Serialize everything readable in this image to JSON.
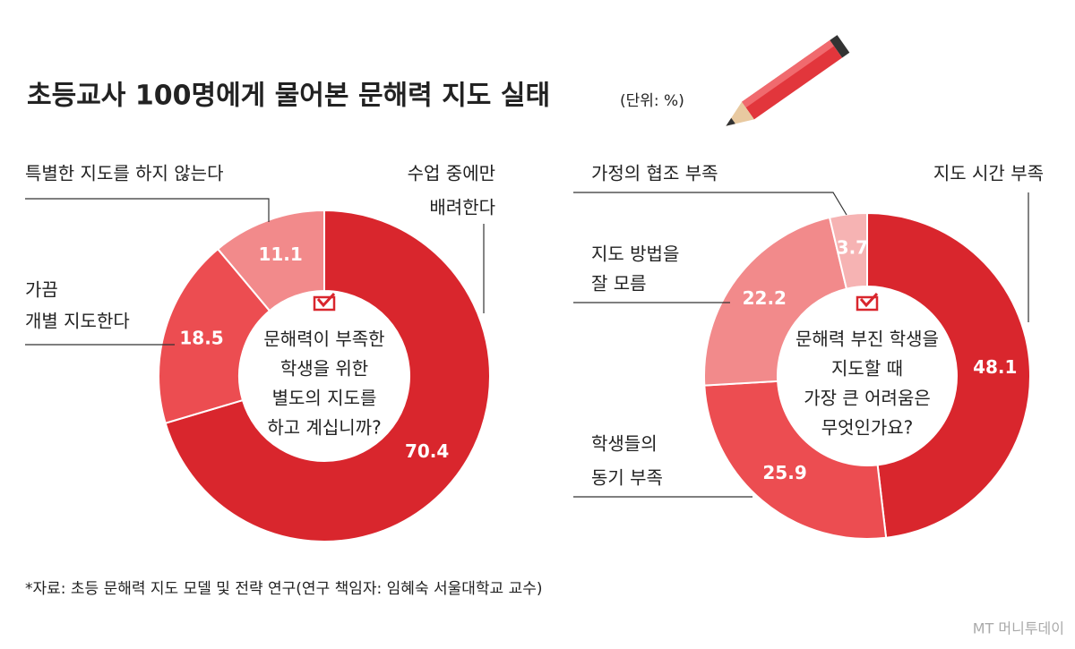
{
  "title": "초등교사 100명에게 물어본 문해력 지도 실태",
  "unit": "(단위: %)",
  "source": "*자료: 초등 문해력 지도 모델 및 전략 연구(연구 책임자: 임혜숙 서울대학교 교수)",
  "watermark": "MT 머니투데이",
  "chart_data": [
    {
      "type": "donut",
      "center_text": [
        "문해력이 부족한",
        "학생을 위한",
        "별도의 지도를",
        "하고 계십니까?"
      ],
      "categories": [
        [
          "수업 중에만",
          "배려한다"
        ],
        [
          "가끔",
          "개별 지도한다"
        ],
        [
          "특별한 지도를 하지 않는다"
        ]
      ],
      "values": [
        70.4,
        18.5,
        11.1
      ],
      "colors": [
        "#d9262d",
        "#ec4d51",
        "#f28a8b"
      ]
    },
    {
      "type": "donut",
      "center_text": [
        "문해력 부진 학생을",
        "지도할 때",
        "가장 큰 어려움은",
        "무엇인가요?"
      ],
      "categories": [
        [
          "지도 시간 부족"
        ],
        [
          "학생들의",
          "동기 부족"
        ],
        [
          "지도 방법을",
          "잘 모름"
        ],
        [
          "가정의 협조 부족"
        ]
      ],
      "values": [
        48.1,
        25.9,
        22.2,
        3.7
      ],
      "colors": [
        "#d9262d",
        "#ec4d51",
        "#f28a8b",
        "#f6b3b3"
      ]
    }
  ]
}
